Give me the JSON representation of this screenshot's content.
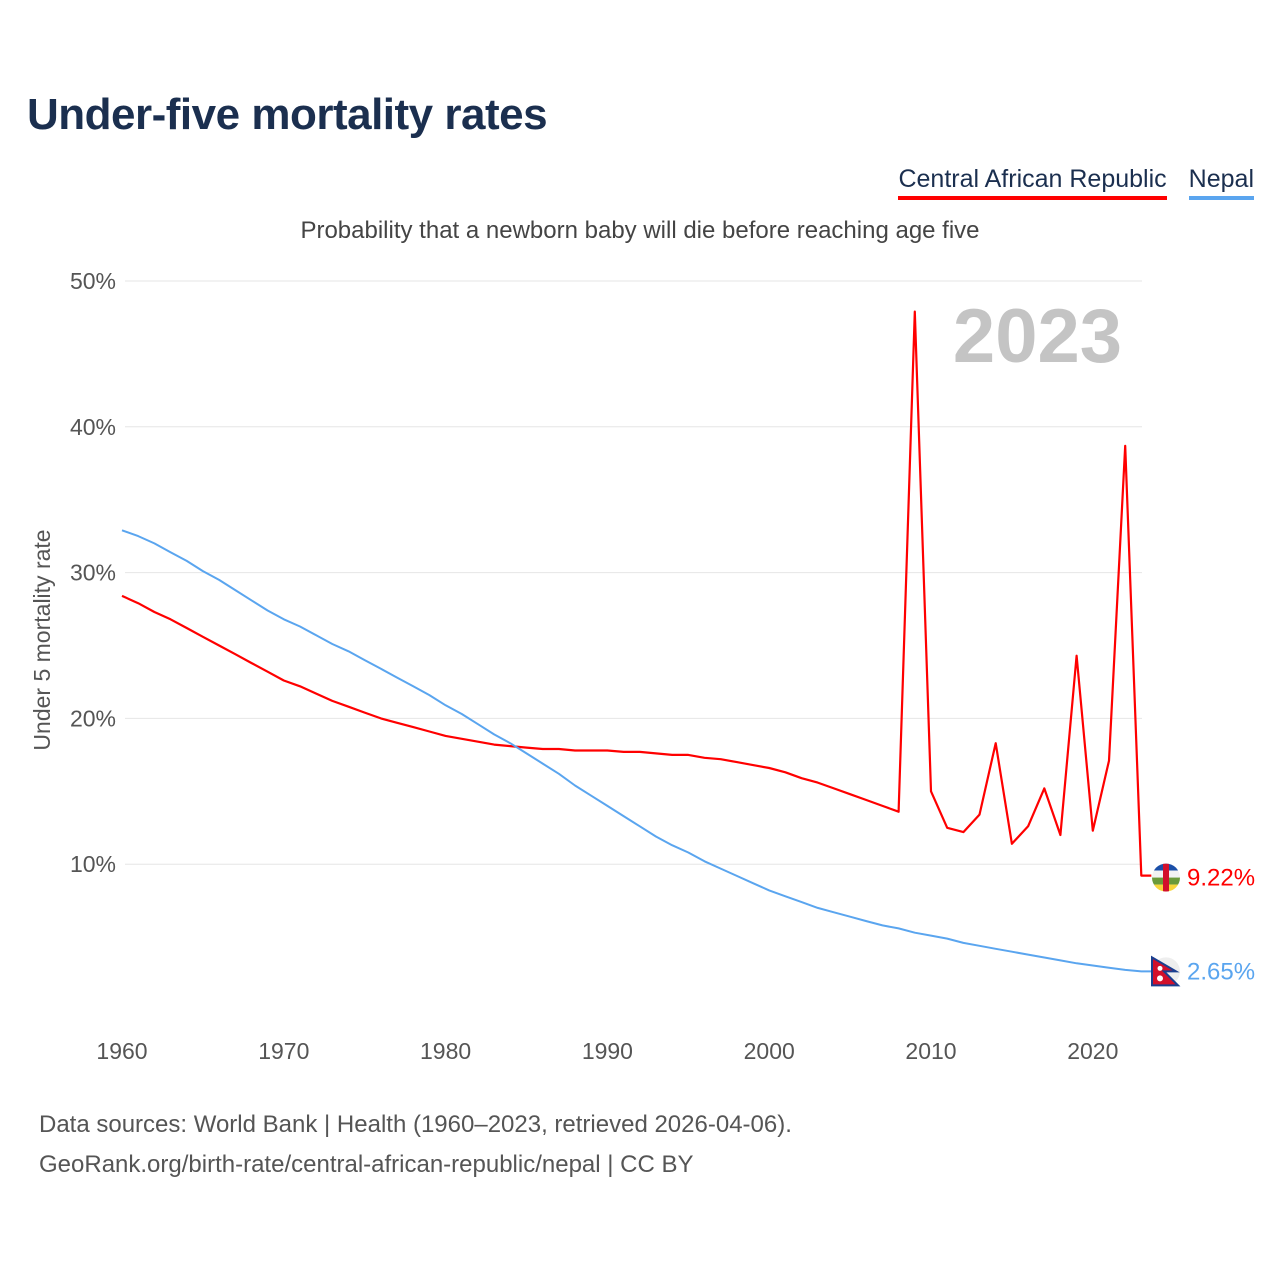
{
  "title": "Under-five mortality rates",
  "subtitle": "Probability that a newborn baby will die before reaching age five",
  "legend": [
    {
      "label": "Central African Republic",
      "color": "#ff0000"
    },
    {
      "label": "Nepal",
      "color": "#5aa5ef"
    }
  ],
  "year_watermark": "2023",
  "footer": {
    "line1": "Data sources: World Bank | Health (1960–2023, retrieved 2026-04-06).",
    "line2": "GeoRank.org/birth-rate/central-african-republic/nepal | CC BY"
  },
  "chart_data": {
    "type": "line",
    "title": "Under-five mortality rates",
    "xlabel": "",
    "ylabel": "Under 5 mortality rate",
    "xlim": [
      1960,
      2023
    ],
    "ylim": [
      0,
      50
    ],
    "x_ticks": [
      "1960",
      "1970",
      "1980",
      "1990",
      "2000",
      "2010",
      "2020"
    ],
    "y_ticks": [
      "10%",
      "20%",
      "30%",
      "40%",
      "50%"
    ],
    "y_tick_values": [
      10,
      20,
      30,
      40,
      50
    ],
    "grid": true,
    "legend_position": "top-right",
    "x_start": 1960,
    "series": [
      {
        "name": "Central African Republic",
        "color": "#ff0000",
        "end_label": "9.22%",
        "values": [
          28.4,
          27.9,
          27.3,
          26.8,
          26.2,
          25.6,
          25.0,
          24.4,
          23.8,
          23.2,
          22.6,
          22.2,
          21.7,
          21.2,
          20.8,
          20.4,
          20.0,
          19.7,
          19.4,
          19.1,
          18.8,
          18.6,
          18.4,
          18.2,
          18.1,
          18.0,
          17.9,
          17.9,
          17.8,
          17.8,
          17.8,
          17.7,
          17.7,
          17.6,
          17.5,
          17.5,
          17.3,
          17.2,
          17.0,
          16.8,
          16.6,
          16.3,
          15.9,
          15.6,
          15.2,
          14.8,
          14.4,
          14.0,
          13.6,
          47.9,
          15.0,
          12.5,
          12.2,
          13.4,
          18.3,
          11.4,
          12.6,
          15.2,
          12.0,
          24.3,
          12.3,
          17.1,
          38.7,
          9.22
        ]
      },
      {
        "name": "Nepal",
        "color": "#5aa5ef",
        "end_label": "2.65%",
        "values": [
          32.9,
          32.5,
          32.0,
          31.4,
          30.8,
          30.1,
          29.5,
          28.8,
          28.1,
          27.4,
          26.8,
          26.3,
          25.7,
          25.1,
          24.6,
          24.0,
          23.4,
          22.8,
          22.2,
          21.6,
          20.9,
          20.3,
          19.6,
          18.9,
          18.3,
          17.6,
          16.9,
          16.2,
          15.4,
          14.7,
          14.0,
          13.3,
          12.6,
          11.9,
          11.3,
          10.8,
          10.2,
          9.7,
          9.2,
          8.7,
          8.2,
          7.8,
          7.4,
          7.0,
          6.7,
          6.4,
          6.1,
          5.8,
          5.6,
          5.3,
          5.1,
          4.9,
          4.6,
          4.4,
          4.2,
          4.0,
          3.8,
          3.6,
          3.4,
          3.2,
          3.05,
          2.9,
          2.75,
          2.65
        ]
      }
    ]
  }
}
